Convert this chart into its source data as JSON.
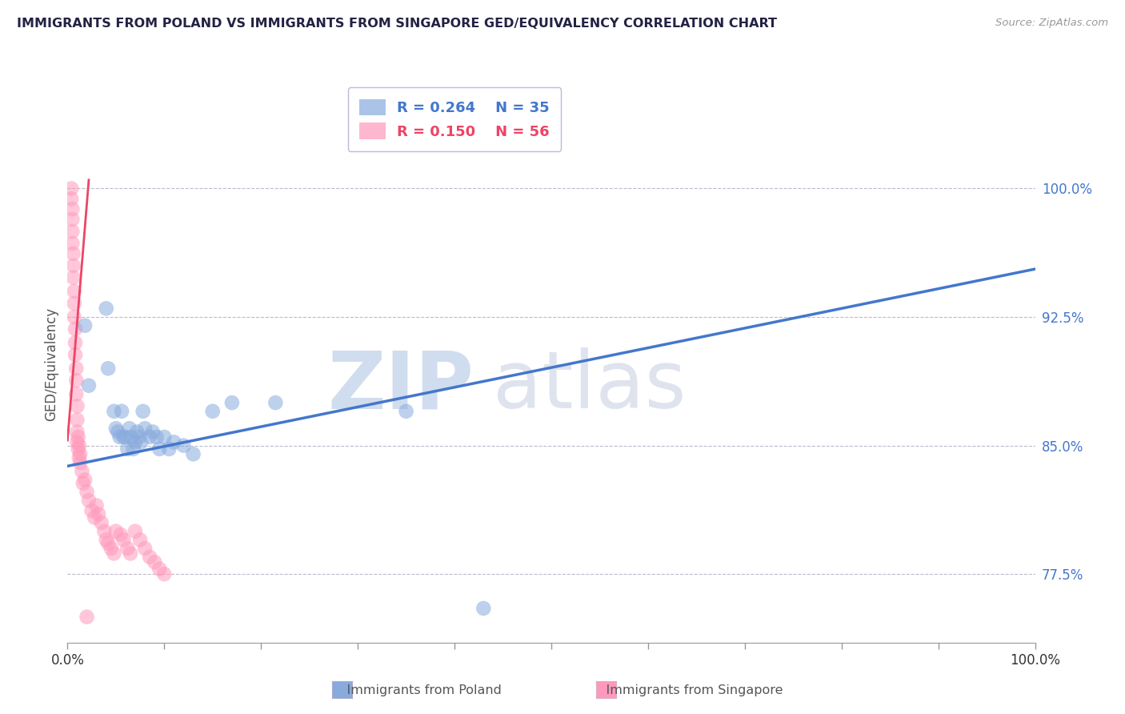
{
  "title": "IMMIGRANTS FROM POLAND VS IMMIGRANTS FROM SINGAPORE GED/EQUIVALENCY CORRELATION CHART",
  "source": "Source: ZipAtlas.com",
  "ylabel": "GED/Equivalency",
  "yticks": [
    0.775,
    0.85,
    0.925,
    1.0
  ],
  "ytick_labels": [
    "77.5%",
    "85.0%",
    "92.5%",
    "100.0%"
  ],
  "xlim": [
    0.0,
    1.0
  ],
  "ylim": [
    0.735,
    1.06
  ],
  "legend_r1": "R = 0.264",
  "legend_n1": "N = 35",
  "legend_r2": "R = 0.150",
  "legend_n2": "N = 56",
  "poland_color": "#88AADD",
  "singapore_color": "#FF99BB",
  "poland_trend_color": "#4477CC",
  "singapore_trend_color": "#EE4466",
  "watermark_zip": "ZIP",
  "watermark_atlas": "atlas",
  "poland_dots": [
    [
      0.018,
      0.92
    ],
    [
      0.022,
      0.885
    ],
    [
      0.04,
      0.93
    ],
    [
      0.042,
      0.895
    ],
    [
      0.048,
      0.87
    ],
    [
      0.05,
      0.86
    ],
    [
      0.052,
      0.858
    ],
    [
      0.054,
      0.855
    ],
    [
      0.056,
      0.87
    ],
    [
      0.058,
      0.855
    ],
    [
      0.06,
      0.855
    ],
    [
      0.062,
      0.848
    ],
    [
      0.064,
      0.86
    ],
    [
      0.066,
      0.855
    ],
    [
      0.068,
      0.848
    ],
    [
      0.07,
      0.852
    ],
    [
      0.072,
      0.858
    ],
    [
      0.074,
      0.855
    ],
    [
      0.076,
      0.852
    ],
    [
      0.078,
      0.87
    ],
    [
      0.08,
      0.86
    ],
    [
      0.085,
      0.855
    ],
    [
      0.088,
      0.858
    ],
    [
      0.092,
      0.855
    ],
    [
      0.095,
      0.848
    ],
    [
      0.1,
      0.855
    ],
    [
      0.105,
      0.848
    ],
    [
      0.11,
      0.852
    ],
    [
      0.12,
      0.85
    ],
    [
      0.13,
      0.845
    ],
    [
      0.15,
      0.87
    ],
    [
      0.17,
      0.875
    ],
    [
      0.215,
      0.875
    ],
    [
      0.35,
      0.87
    ],
    [
      0.43,
      0.755
    ]
  ],
  "singapore_dots": [
    [
      0.004,
      1.0
    ],
    [
      0.004,
      0.994
    ],
    [
      0.005,
      0.988
    ],
    [
      0.005,
      0.982
    ],
    [
      0.005,
      0.975
    ],
    [
      0.005,
      0.968
    ],
    [
      0.006,
      0.962
    ],
    [
      0.006,
      0.955
    ],
    [
      0.006,
      0.948
    ],
    [
      0.007,
      0.94
    ],
    [
      0.007,
      0.933
    ],
    [
      0.007,
      0.925
    ],
    [
      0.008,
      0.918
    ],
    [
      0.008,
      0.91
    ],
    [
      0.008,
      0.903
    ],
    [
      0.009,
      0.895
    ],
    [
      0.009,
      0.888
    ],
    [
      0.009,
      0.88
    ],
    [
      0.01,
      0.873
    ],
    [
      0.01,
      0.865
    ],
    [
      0.01,
      0.858
    ],
    [
      0.01,
      0.852
    ],
    [
      0.011,
      0.855
    ],
    [
      0.011,
      0.848
    ],
    [
      0.012,
      0.85
    ],
    [
      0.012,
      0.843
    ],
    [
      0.013,
      0.845
    ],
    [
      0.013,
      0.84
    ],
    [
      0.015,
      0.835
    ],
    [
      0.016,
      0.828
    ],
    [
      0.018,
      0.83
    ],
    [
      0.02,
      0.823
    ],
    [
      0.022,
      0.818
    ],
    [
      0.025,
      0.812
    ],
    [
      0.028,
      0.808
    ],
    [
      0.03,
      0.815
    ],
    [
      0.032,
      0.81
    ],
    [
      0.035,
      0.805
    ],
    [
      0.038,
      0.8
    ],
    [
      0.04,
      0.795
    ],
    [
      0.042,
      0.793
    ],
    [
      0.045,
      0.79
    ],
    [
      0.048,
      0.787
    ],
    [
      0.05,
      0.8
    ],
    [
      0.055,
      0.798
    ],
    [
      0.058,
      0.795
    ],
    [
      0.062,
      0.79
    ],
    [
      0.065,
      0.787
    ],
    [
      0.07,
      0.8
    ],
    [
      0.075,
      0.795
    ],
    [
      0.08,
      0.79
    ],
    [
      0.085,
      0.785
    ],
    [
      0.09,
      0.782
    ],
    [
      0.095,
      0.778
    ],
    [
      0.1,
      0.775
    ],
    [
      0.02,
      0.75
    ]
  ],
  "poland_line_x": [
    0.0,
    1.0
  ],
  "poland_line_y": [
    0.838,
    0.953
  ],
  "singapore_line_x": [
    0.0,
    0.022
  ],
  "singapore_line_y": [
    0.853,
    1.005
  ],
  "xticks": [
    0.0,
    0.1,
    0.2,
    0.3,
    0.4,
    0.5,
    0.6,
    0.7,
    0.8,
    0.9,
    1.0
  ],
  "xtick_labels": [
    "0.0%",
    "",
    "",
    "",
    "",
    "",
    "",
    "",
    "",
    "",
    "100.0%"
  ]
}
